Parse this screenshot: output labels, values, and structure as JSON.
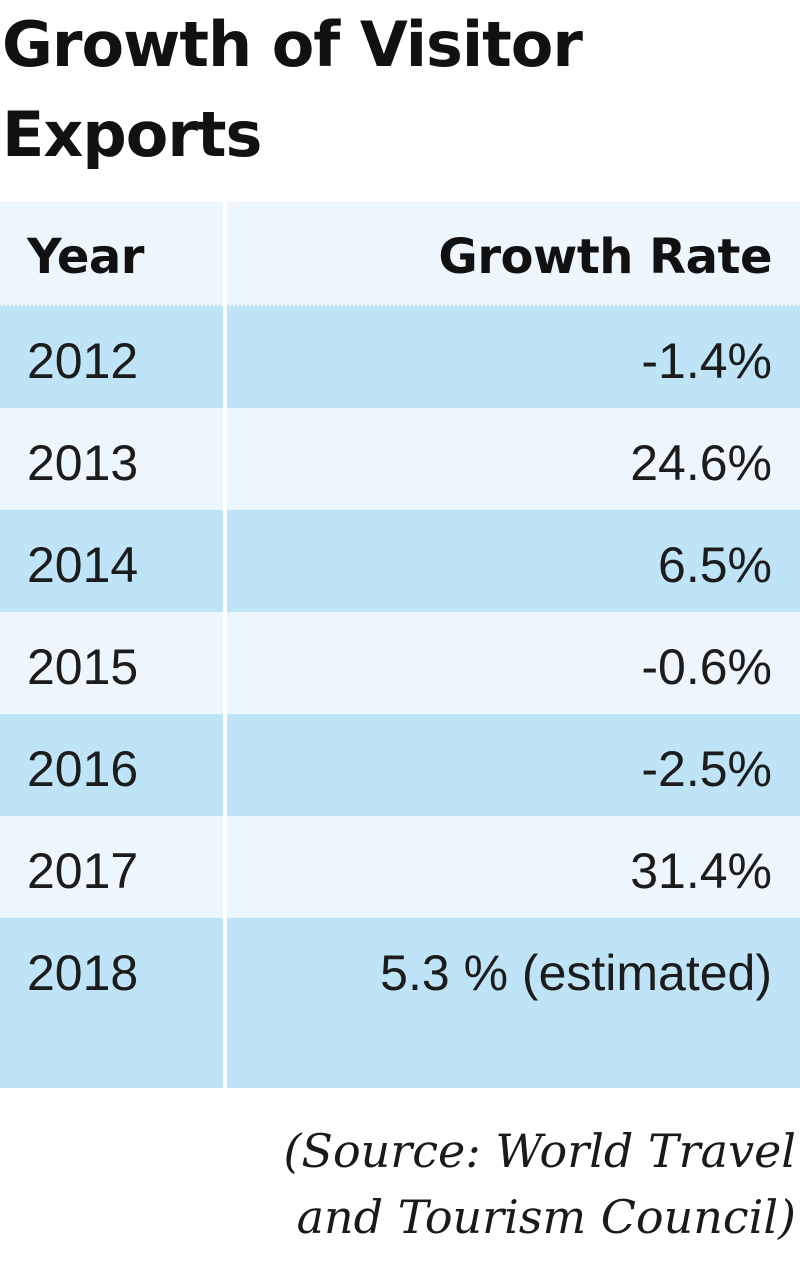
{
  "title": "Growth of Visitor Exports",
  "table": {
    "headers": {
      "year": "Year",
      "rate": "Growth Rate"
    },
    "rows": [
      {
        "year": "2012",
        "rate": "-1.4%"
      },
      {
        "year": "2013",
        "rate": "24.6%"
      },
      {
        "year": "2014",
        "rate": "6.5%"
      },
      {
        "year": "2015",
        "rate": "-0.6%"
      },
      {
        "year": "2016",
        "rate": "-2.5%"
      },
      {
        "year": "2017",
        "rate": "31.4%"
      },
      {
        "year": "2018",
        "rate": "5.3 % (estimated)"
      }
    ]
  },
  "source_line1": "(Source: World Travel",
  "source_line2": "and Tourism Council)",
  "colors": {
    "row_light": "#edf6fd",
    "row_dark": "#bfe4f8"
  },
  "chart_data": {
    "type": "table",
    "title": "Growth of Visitor Exports",
    "columns": [
      "Year",
      "Growth Rate"
    ],
    "rows": [
      [
        "2012",
        "-1.4%"
      ],
      [
        "2013",
        "24.6%"
      ],
      [
        "2014",
        "6.5%"
      ],
      [
        "2015",
        "-0.6%"
      ],
      [
        "2016",
        "-2.5%"
      ],
      [
        "2017",
        "31.4%"
      ],
      [
        "2018",
        "5.3 % (estimated)"
      ]
    ]
  }
}
